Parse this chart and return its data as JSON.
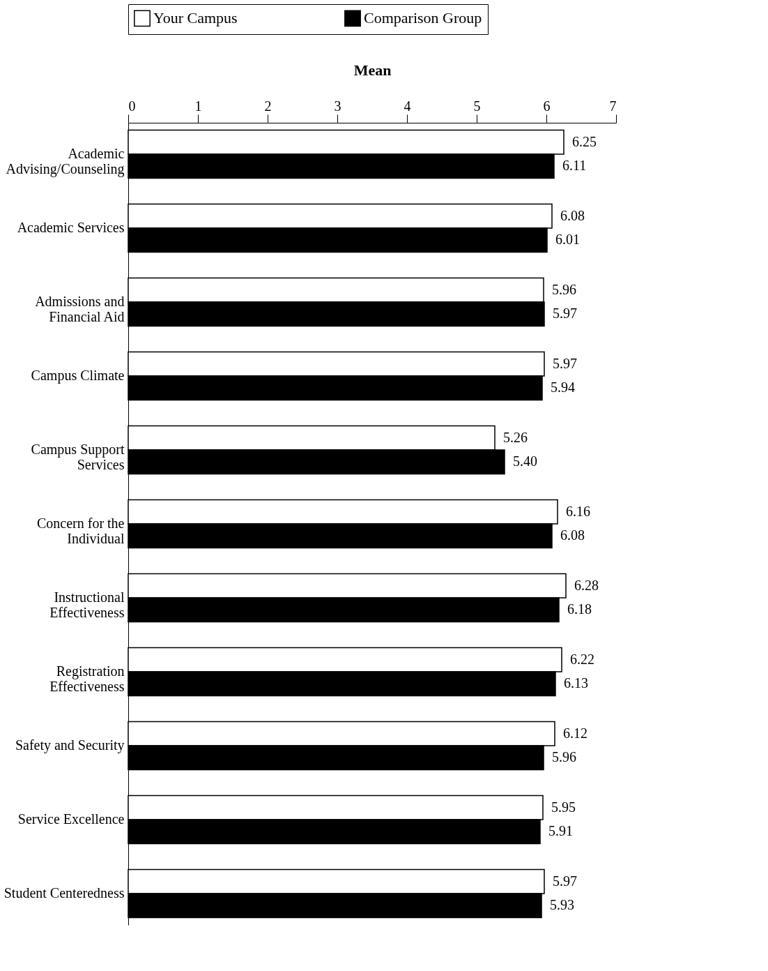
{
  "chart_data": {
    "type": "bar",
    "orientation": "horizontal",
    "xlabel": "Mean",
    "categories": [
      "Academic Advising/Counseling",
      "Academic Services",
      "Admissions and Financial Aid",
      "Campus Climate",
      "Campus Support Services",
      "Concern for the Individual",
      "Instructional Effectiveness",
      "Registration Effectiveness",
      "Safety and Security",
      "Service Excellence",
      "Student Centeredness"
    ],
    "series": [
      {
        "name": "Your Campus",
        "color": "#ffffff",
        "values": [
          6.25,
          6.08,
          5.96,
          5.97,
          5.26,
          6.16,
          6.28,
          6.22,
          6.12,
          5.95,
          5.97
        ],
        "value_labels": [
          "6.25",
          "6.08",
          "5.96",
          "5.97",
          "5.26",
          "6.16",
          "6.28",
          "6.22",
          "6.12",
          "5.95",
          "5.97"
        ]
      },
      {
        "name": "Comparison Group",
        "color": "#000000",
        "values": [
          6.11,
          6.01,
          5.97,
          5.94,
          5.4,
          6.08,
          6.18,
          6.13,
          5.96,
          5.91,
          5.93
        ],
        "value_labels": [
          "6.11",
          "6.01",
          "5.97",
          "5.94",
          "5.40",
          "6.08",
          "6.18",
          "6.13",
          "5.96",
          "5.91",
          "5.93"
        ]
      }
    ],
    "xlim": [
      0,
      7
    ],
    "xticks": [
      0,
      1,
      2,
      3,
      4,
      5,
      6,
      7
    ],
    "legend": "top",
    "grid": false
  }
}
